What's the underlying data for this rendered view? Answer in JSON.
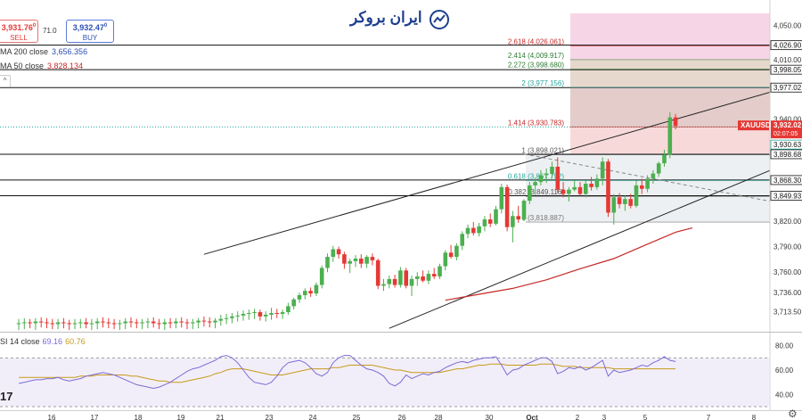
{
  "header": {
    "logo_text": "ایران بروکر",
    "sell_price": "3,931.76",
    "sell_sup": "0",
    "sell_label": "SELL",
    "spread": "71.0",
    "buy_price": "3,932.47",
    "buy_sup": "0",
    "buy_label": "BUY"
  },
  "indicators": {
    "ma200_label": "MA 200 close",
    "ma200_value": "3,656.356",
    "ma50_label": "MA 50 close",
    "ma50_value": "3,828.134",
    "rsi_label": "SI 14 close",
    "rsi_value": "69.16",
    "rsi_ma_value": "60.76",
    "collapse_icon": "^"
  },
  "tv_logo": "17",
  "settings_icon": "gear-icon",
  "chart_data": {
    "type": "candlestick",
    "symbol": "XAUUSD",
    "price_axis": {
      "ylim": [
        3690,
        4080
      ],
      "ticks": [
        "4,050.00",
        "4,010.00",
        "3,940.00",
        "3,820.00",
        "3,790.00",
        "3,760.00",
        "3,736.00",
        "3,713.50"
      ]
    },
    "x_axis": {
      "labels": [
        "16",
        "17",
        "18",
        "19",
        "21",
        "23",
        "24",
        "25",
        "26",
        "28",
        "30",
        "Oct",
        "2",
        "3",
        "5",
        "7",
        "8"
      ]
    },
    "candles": [
      {
        "o": 3700,
        "h": 3705,
        "l": 3692,
        "c": 3700
      },
      {
        "o": 3700,
        "h": 3706,
        "l": 3693,
        "c": 3701
      },
      {
        "o": 3701,
        "h": 3705,
        "l": 3694,
        "c": 3700
      },
      {
        "o": 3700,
        "h": 3706,
        "l": 3692,
        "c": 3702
      },
      {
        "o": 3702,
        "h": 3707,
        "l": 3695,
        "c": 3701
      },
      {
        "o": 3701,
        "h": 3706,
        "l": 3694,
        "c": 3700
      },
      {
        "o": 3700,
        "h": 3705,
        "l": 3693,
        "c": 3699
      },
      {
        "o": 3699,
        "h": 3705,
        "l": 3693,
        "c": 3701
      },
      {
        "o": 3701,
        "h": 3706,
        "l": 3694,
        "c": 3700
      },
      {
        "o": 3700,
        "h": 3704,
        "l": 3692,
        "c": 3699
      },
      {
        "o": 3699,
        "h": 3705,
        "l": 3693,
        "c": 3700
      },
      {
        "o": 3700,
        "h": 3705,
        "l": 3694,
        "c": 3701
      },
      {
        "o": 3701,
        "h": 3706,
        "l": 3694,
        "c": 3699
      },
      {
        "o": 3699,
        "h": 3705,
        "l": 3692,
        "c": 3700
      },
      {
        "o": 3700,
        "h": 3706,
        "l": 3693,
        "c": 3702
      },
      {
        "o": 3702,
        "h": 3707,
        "l": 3695,
        "c": 3701
      },
      {
        "o": 3701,
        "h": 3706,
        "l": 3694,
        "c": 3700
      },
      {
        "o": 3700,
        "h": 3705,
        "l": 3693,
        "c": 3699
      },
      {
        "o": 3699,
        "h": 3704,
        "l": 3692,
        "c": 3700
      },
      {
        "o": 3700,
        "h": 3706,
        "l": 3693,
        "c": 3702
      },
      {
        "o": 3702,
        "h": 3707,
        "l": 3695,
        "c": 3701
      },
      {
        "o": 3701,
        "h": 3705,
        "l": 3694,
        "c": 3700
      },
      {
        "o": 3700,
        "h": 3705,
        "l": 3693,
        "c": 3701
      },
      {
        "o": 3701,
        "h": 3706,
        "l": 3694,
        "c": 3702
      },
      {
        "o": 3702,
        "h": 3707,
        "l": 3695,
        "c": 3700
      },
      {
        "o": 3700,
        "h": 3705,
        "l": 3693,
        "c": 3699
      },
      {
        "o": 3699,
        "h": 3705,
        "l": 3692,
        "c": 3701
      },
      {
        "o": 3701,
        "h": 3706,
        "l": 3694,
        "c": 3700
      },
      {
        "o": 3700,
        "h": 3706,
        "l": 3694,
        "c": 3702
      },
      {
        "o": 3702,
        "h": 3707,
        "l": 3695,
        "c": 3701
      },
      {
        "o": 3701,
        "h": 3705,
        "l": 3693,
        "c": 3700
      },
      {
        "o": 3700,
        "h": 3705,
        "l": 3693,
        "c": 3701
      },
      {
        "o": 3701,
        "h": 3706,
        "l": 3694,
        "c": 3703
      },
      {
        "o": 3703,
        "h": 3708,
        "l": 3696,
        "c": 3702
      },
      {
        "o": 3702,
        "h": 3707,
        "l": 3695,
        "c": 3701
      },
      {
        "o": 3701,
        "h": 3706,
        "l": 3694,
        "c": 3703
      },
      {
        "o": 3703,
        "h": 3710,
        "l": 3697,
        "c": 3705
      },
      {
        "o": 3705,
        "h": 3711,
        "l": 3699,
        "c": 3706
      },
      {
        "o": 3706,
        "h": 3712,
        "l": 3700,
        "c": 3708
      },
      {
        "o": 3708,
        "h": 3714,
        "l": 3702,
        "c": 3709
      },
      {
        "o": 3709,
        "h": 3715,
        "l": 3703,
        "c": 3711
      },
      {
        "o": 3711,
        "h": 3716,
        "l": 3704,
        "c": 3712
      },
      {
        "o": 3712,
        "h": 3717,
        "l": 3705,
        "c": 3713
      },
      {
        "o": 3713,
        "h": 3716,
        "l": 3703,
        "c": 3708
      },
      {
        "o": 3708,
        "h": 3714,
        "l": 3702,
        "c": 3710
      },
      {
        "o": 3710,
        "h": 3718,
        "l": 3704,
        "c": 3712
      },
      {
        "o": 3712,
        "h": 3717,
        "l": 3706,
        "c": 3711
      },
      {
        "o": 3711,
        "h": 3716,
        "l": 3705,
        "c": 3713
      },
      {
        "o": 3713,
        "h": 3724,
        "l": 3710,
        "c": 3720
      },
      {
        "o": 3720,
        "h": 3730,
        "l": 3716,
        "c": 3728
      },
      {
        "o": 3728,
        "h": 3736,
        "l": 3724,
        "c": 3733
      },
      {
        "o": 3733,
        "h": 3741,
        "l": 3728,
        "c": 3738
      },
      {
        "o": 3738,
        "h": 3742,
        "l": 3731,
        "c": 3735
      },
      {
        "o": 3735,
        "h": 3748,
        "l": 3732,
        "c": 3745
      },
      {
        "o": 3745,
        "h": 3768,
        "l": 3741,
        "c": 3765
      },
      {
        "o": 3765,
        "h": 3782,
        "l": 3760,
        "c": 3778
      },
      {
        "o": 3778,
        "h": 3791,
        "l": 3772,
        "c": 3787
      },
      {
        "o": 3787,
        "h": 3790,
        "l": 3776,
        "c": 3781
      },
      {
        "o": 3781,
        "h": 3784,
        "l": 3764,
        "c": 3770
      },
      {
        "o": 3770,
        "h": 3776,
        "l": 3759,
        "c": 3773
      },
      {
        "o": 3773,
        "h": 3780,
        "l": 3766,
        "c": 3776
      },
      {
        "o": 3776,
        "h": 3781,
        "l": 3765,
        "c": 3770
      },
      {
        "o": 3770,
        "h": 3780,
        "l": 3765,
        "c": 3778
      },
      {
        "o": 3778,
        "h": 3782,
        "l": 3768,
        "c": 3774
      },
      {
        "o": 3774,
        "h": 3776,
        "l": 3740,
        "c": 3744
      },
      {
        "o": 3744,
        "h": 3752,
        "l": 3738,
        "c": 3746
      },
      {
        "o": 3746,
        "h": 3756,
        "l": 3741,
        "c": 3752
      },
      {
        "o": 3752,
        "h": 3757,
        "l": 3742,
        "c": 3745
      },
      {
        "o": 3745,
        "h": 3766,
        "l": 3742,
        "c": 3762
      },
      {
        "o": 3762,
        "h": 3765,
        "l": 3741,
        "c": 3744
      },
      {
        "o": 3744,
        "h": 3756,
        "l": 3732,
        "c": 3752
      },
      {
        "o": 3752,
        "h": 3760,
        "l": 3744,
        "c": 3755
      },
      {
        "o": 3755,
        "h": 3762,
        "l": 3748,
        "c": 3750
      },
      {
        "o": 3750,
        "h": 3762,
        "l": 3746,
        "c": 3758
      },
      {
        "o": 3758,
        "h": 3765,
        "l": 3752,
        "c": 3755
      },
      {
        "o": 3755,
        "h": 3770,
        "l": 3752,
        "c": 3767
      },
      {
        "o": 3767,
        "h": 3786,
        "l": 3762,
        "c": 3783
      },
      {
        "o": 3783,
        "h": 3792,
        "l": 3776,
        "c": 3778
      },
      {
        "o": 3778,
        "h": 3794,
        "l": 3774,
        "c": 3791
      },
      {
        "o": 3791,
        "h": 3808,
        "l": 3786,
        "c": 3805
      },
      {
        "o": 3805,
        "h": 3816,
        "l": 3800,
        "c": 3812
      },
      {
        "o": 3812,
        "h": 3819,
        "l": 3803,
        "c": 3806
      },
      {
        "o": 3806,
        "h": 3818,
        "l": 3802,
        "c": 3814
      },
      {
        "o": 3814,
        "h": 3826,
        "l": 3808,
        "c": 3822
      },
      {
        "o": 3822,
        "h": 3829,
        "l": 3813,
        "c": 3817
      },
      {
        "o": 3817,
        "h": 3838,
        "l": 3815,
        "c": 3834
      },
      {
        "o": 3834,
        "h": 3864,
        "l": 3829,
        "c": 3860
      },
      {
        "o": 3860,
        "h": 3863,
        "l": 3808,
        "c": 3813
      },
      {
        "o": 3813,
        "h": 3832,
        "l": 3795,
        "c": 3826
      },
      {
        "o": 3826,
        "h": 3838,
        "l": 3818,
        "c": 3822
      },
      {
        "o": 3822,
        "h": 3846,
        "l": 3820,
        "c": 3844
      },
      {
        "o": 3844,
        "h": 3866,
        "l": 3840,
        "c": 3862
      },
      {
        "o": 3862,
        "h": 3871,
        "l": 3852,
        "c": 3866
      },
      {
        "o": 3866,
        "h": 3880,
        "l": 3862,
        "c": 3874
      },
      {
        "o": 3874,
        "h": 3882,
        "l": 3865,
        "c": 3876
      },
      {
        "o": 3876,
        "h": 3890,
        "l": 3870,
        "c": 3884
      },
      {
        "o": 3884,
        "h": 3895,
        "l": 3853,
        "c": 3857
      },
      {
        "o": 3857,
        "h": 3866,
        "l": 3848,
        "c": 3852
      },
      {
        "o": 3852,
        "h": 3860,
        "l": 3843,
        "c": 3857
      },
      {
        "o": 3857,
        "h": 3868,
        "l": 3855,
        "c": 3860
      },
      {
        "o": 3860,
        "h": 3866,
        "l": 3850,
        "c": 3852
      },
      {
        "o": 3852,
        "h": 3868,
        "l": 3848,
        "c": 3864
      },
      {
        "o": 3864,
        "h": 3872,
        "l": 3856,
        "c": 3860
      },
      {
        "o": 3860,
        "h": 3875,
        "l": 3857,
        "c": 3870
      },
      {
        "o": 3870,
        "h": 3895,
        "l": 3862,
        "c": 3890
      },
      {
        "o": 3890,
        "h": 3893,
        "l": 3825,
        "c": 3830
      },
      {
        "o": 3830,
        "h": 3852,
        "l": 3816,
        "c": 3848
      },
      {
        "o": 3848,
        "h": 3853,
        "l": 3835,
        "c": 3840
      },
      {
        "o": 3840,
        "h": 3850,
        "l": 3832,
        "c": 3846
      },
      {
        "o": 3846,
        "h": 3852,
        "l": 3835,
        "c": 3838
      },
      {
        "o": 3838,
        "h": 3868,
        "l": 3836,
        "c": 3862
      },
      {
        "o": 3862,
        "h": 3870,
        "l": 3852,
        "c": 3858
      },
      {
        "o": 3858,
        "h": 3874,
        "l": 3854,
        "c": 3870
      },
      {
        "o": 3870,
        "h": 3880,
        "l": 3864,
        "c": 3876
      },
      {
        "o": 3876,
        "h": 3890,
        "l": 3872,
        "c": 3888
      },
      {
        "o": 3888,
        "h": 3904,
        "l": 3884,
        "c": 3898
      },
      {
        "o": 3898,
        "h": 3948,
        "l": 3894,
        "c": 3942
      },
      {
        "o": 3942,
        "h": 3946,
        "l": 3928,
        "c": 3932
      }
    ],
    "ma50": [
      {
        "i": 76,
        "v": 3727
      },
      {
        "i": 82,
        "v": 3734
      },
      {
        "i": 88,
        "v": 3741
      },
      {
        "i": 94,
        "v": 3751
      },
      {
        "i": 100,
        "v": 3764
      },
      {
        "i": 106,
        "v": 3776
      },
      {
        "i": 112,
        "v": 3793
      },
      {
        "i": 117,
        "v": 3807
      },
      {
        "i": 120,
        "v": 3812
      }
    ],
    "channel": {
      "upper": [
        {
          "i": 33,
          "v": 3781
        },
        {
          "i": 142,
          "v": 3987
        }
      ],
      "lower": [
        {
          "i": 66,
          "v": 3694
        },
        {
          "i": 142,
          "v": 3902
        }
      ]
    },
    "projection": [
      {
        "i": 90,
        "v": 3899
      },
      {
        "i": 142,
        "v": 3833
      }
    ],
    "fib_levels": [
      {
        "ratio": "0",
        "label": "0 (3,818.887)",
        "price": 3818.887
      },
      {
        "ratio": "0.382",
        "label": "0.382 (3,849.116)",
        "price": 3849.116
      },
      {
        "ratio": "0.618",
        "label": "0.618 (3,867.792)",
        "price": 3867.792
      },
      {
        "ratio": "1",
        "label": "1 (3,898.021)",
        "price": 3898.021
      },
      {
        "ratio": "1.414",
        "label": "1.414 (3,930.783)",
        "price": 3930.783
      },
      {
        "ratio": "2",
        "label": "2 (3,977.156)",
        "price": 3977.156
      },
      {
        "ratio": "2.272",
        "label": "2.272 (3,998.680)",
        "price": 3998.68
      },
      {
        "ratio": "2.414",
        "label": "2.414 (4,009.917)",
        "price": 4009.917
      },
      {
        "ratio": "2.618",
        "label": "2.618 (4,026.061)",
        "price": 4026.061
      }
    ],
    "horizontal_lines": [
      {
        "price": 4026.9,
        "label": "4,026.90"
      },
      {
        "price": 3998.05,
        "label": "3,998.05"
      },
      {
        "price": 3977.02,
        "label": "3,977.02"
      },
      {
        "price": 3898.68,
        "label": "3,898.68"
      },
      {
        "price": 3868.3,
        "label": "3,868.30"
      },
      {
        "price": 3849.93,
        "label": "3,849.93"
      }
    ],
    "price_tags": [
      {
        "label": "3,932.02",
        "sub": "02:07:05",
        "color": "#e53935",
        "price": 3932.02
      },
      {
        "label": "3,930.63",
        "color": "#ffffff",
        "price": 3930.63
      }
    ],
    "symbol_tag": "XAUUSD",
    "rsi": {
      "ylim": [
        30,
        90
      ],
      "ticks": [
        "80.00",
        "60.00",
        "40.00"
      ],
      "overbought": 70,
      "oversold": 30,
      "rsi_values": [
        49,
        50,
        51,
        52,
        52,
        53,
        53,
        54,
        52,
        51,
        52,
        53,
        55,
        56,
        57,
        58,
        57,
        56,
        54,
        52,
        50,
        48,
        47,
        46,
        45,
        46,
        48,
        50,
        53,
        56,
        59,
        61,
        62,
        64,
        66,
        68,
        71,
        72,
        70,
        66,
        60,
        54,
        50,
        49,
        48,
        50,
        55,
        62,
        66,
        67,
        68,
        66,
        62,
        57,
        55,
        58,
        66,
        70,
        72,
        72,
        68,
        64,
        61,
        60,
        58,
        55,
        49,
        47,
        50,
        56,
        53,
        55,
        57,
        56,
        58,
        59,
        62,
        64,
        66,
        67,
        66,
        68,
        69,
        70,
        70,
        71,
        64,
        56,
        60,
        61,
        64,
        66,
        68,
        70,
        70,
        67,
        57,
        59,
        62,
        61,
        63,
        60,
        62,
        65,
        68,
        55,
        60,
        58,
        59,
        60,
        62,
        64,
        63,
        66,
        68,
        71,
        68,
        67
      ],
      "rsi_ma": [
        54,
        54,
        54,
        54,
        54,
        54,
        54,
        54,
        54,
        54,
        54,
        55,
        55,
        55,
        56,
        56,
        56,
        56,
        56,
        56,
        55,
        55,
        54,
        53,
        52,
        51,
        51,
        50,
        50,
        50,
        51,
        52,
        53,
        54,
        55,
        57,
        58,
        60,
        61,
        61,
        61,
        60,
        59,
        58,
        57,
        56,
        56,
        56,
        57,
        58,
        59,
        60,
        61,
        61,
        61,
        61,
        62,
        62,
        63,
        64,
        64,
        64,
        64,
        64,
        63,
        62,
        61,
        60,
        60,
        59,
        58,
        58,
        58,
        58,
        58,
        58,
        59,
        60,
        61,
        61,
        62,
        63,
        64,
        64,
        65,
        65,
        65,
        64,
        64,
        64,
        64,
        64,
        64,
        65,
        65,
        65,
        64,
        63,
        63,
        63,
        62,
        62,
        62,
        62,
        62,
        62,
        61,
        61,
        61,
        61,
        61,
        61,
        61,
        61,
        61,
        61,
        61,
        61
      ]
    }
  }
}
